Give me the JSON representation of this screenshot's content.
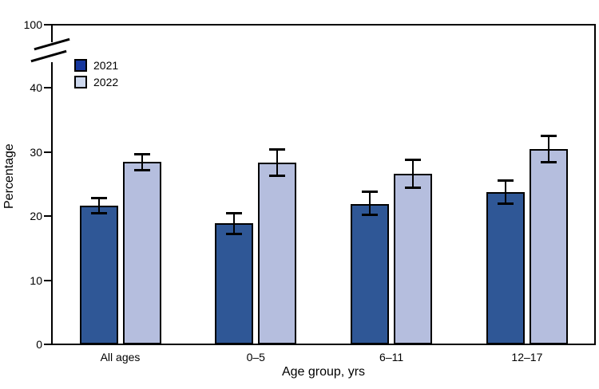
{
  "chart_data": {
    "type": "bar",
    "title": "",
    "categories": [
      "All ages",
      "0–5",
      "6–11",
      "12–17"
    ],
    "series": [
      {
        "name": "2021",
        "bar_color": "#2F5796",
        "legend_color": "#16379E",
        "values": [
          21.6,
          18.9,
          21.9,
          23.7
        ],
        "ci_low": [
          20.4,
          17.2,
          20.1,
          21.9
        ],
        "ci_high": [
          22.8,
          20.5,
          23.8,
          25.6
        ]
      },
      {
        "name": "2022",
        "bar_color": "#B5BEDE",
        "legend_color": "#CDD8EE",
        "values": [
          28.4,
          28.3,
          26.6,
          30.4
        ],
        "ci_low": [
          27.1,
          26.2,
          24.4,
          28.3
        ],
        "ci_high": [
          29.7,
          30.4,
          28.8,
          32.5
        ]
      }
    ],
    "xlabel": "Age group, yrs",
    "ylabel": "Percentage",
    "y_ticks": [
      0,
      10,
      20,
      30,
      40
    ],
    "y_axis_break": true,
    "y_top_tick_label": "100",
    "ylim": [
      0,
      43
    ],
    "grid": false,
    "legend_position": "upper-left-inside",
    "error_bars": true,
    "axis_color": "#000000",
    "text_color": "#000000",
    "background": "#FFFFFF"
  }
}
